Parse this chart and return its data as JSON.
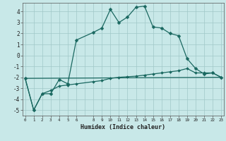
{
  "xlabel": "Humidex (Indice chaleur)",
  "background_color": "#c8e8e8",
  "grid_color": "#a0c8c8",
  "line_color": "#1a6860",
  "xlim": [
    -0.3,
    23.3
  ],
  "ylim": [
    -5.5,
    4.8
  ],
  "xticks": [
    0,
    1,
    2,
    3,
    4,
    5,
    6,
    8,
    9,
    10,
    11,
    12,
    13,
    14,
    15,
    16,
    17,
    18,
    19,
    20,
    21,
    22,
    23
  ],
  "yticks": [
    -5,
    -4,
    -3,
    -2,
    -1,
    0,
    1,
    2,
    3,
    4
  ],
  "grid_xticks": [
    0,
    1,
    2,
    3,
    4,
    5,
    6,
    7,
    8,
    9,
    10,
    11,
    12,
    13,
    14,
    15,
    16,
    17,
    18,
    19,
    20,
    21,
    22,
    23
  ],
  "line1_x": [
    0,
    1,
    2,
    3,
    4,
    5,
    6,
    8,
    9,
    10,
    11,
    12,
    13,
    14,
    15,
    16,
    17,
    18,
    19,
    20,
    21,
    22,
    23
  ],
  "line1_y": [
    -2.1,
    -5.0,
    -3.5,
    -3.5,
    -2.2,
    -2.6,
    1.4,
    2.1,
    2.5,
    4.2,
    3.0,
    3.5,
    4.4,
    4.5,
    2.6,
    2.5,
    2.0,
    1.8,
    -0.3,
    -1.2,
    -1.7,
    -1.6,
    -2.0
  ],
  "line2_x": [
    0,
    1,
    2,
    3,
    4,
    5,
    6,
    8,
    9,
    10,
    11,
    12,
    13,
    14,
    15,
    16,
    17,
    18,
    19,
    20,
    21,
    22,
    23
  ],
  "line2_y": [
    -2.1,
    -5.0,
    -3.5,
    -3.2,
    -2.8,
    -2.7,
    -2.6,
    -2.4,
    -2.3,
    -2.1,
    -2.0,
    -1.95,
    -1.9,
    -1.8,
    -1.7,
    -1.6,
    -1.5,
    -1.4,
    -1.2,
    -1.6,
    -1.6,
    -1.6,
    -2.0
  ],
  "line3_x": [
    0,
    23
  ],
  "line3_y": [
    -2.1,
    -2.0
  ]
}
